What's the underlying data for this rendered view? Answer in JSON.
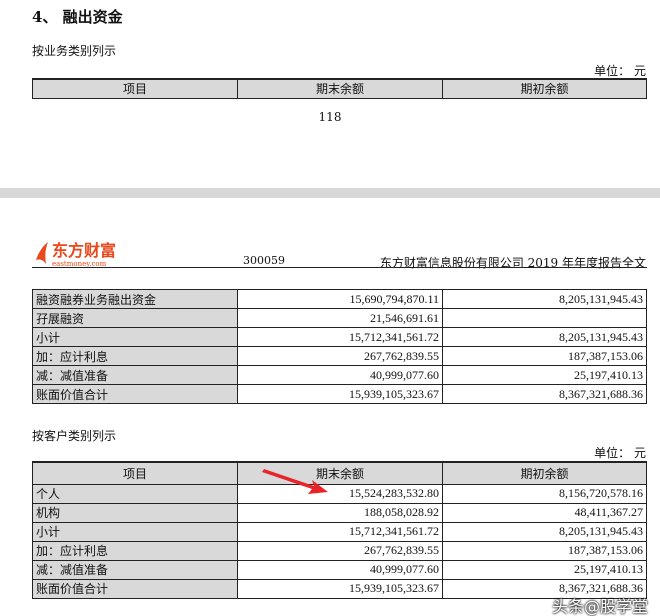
{
  "page1": {
    "heading": "4、 融出资金",
    "subtitle": "按业务类别列示",
    "unit": "单位： 元",
    "headers": [
      "项目",
      "期末余额",
      "期初余额"
    ],
    "page_number": "118"
  },
  "page2": {
    "logo_cn": "东方财富",
    "logo_en": "eastmoney.com",
    "stock_code": "300059",
    "doc_title": "东方财富信息股份有限公司 2019 年年度报告全文",
    "table1": [
      [
        "融资融券业务融出资金",
        "15,690,794,870.11",
        "8,205,131,945.43"
      ],
      [
        "孖展融资",
        "21,546,691.61",
        ""
      ],
      [
        "小计",
        "15,712,341,561.72",
        "8,205,131,945.43"
      ],
      [
        "加：应计利息",
        "267,762,839.55",
        "187,387,153.06"
      ],
      [
        "减：减值准备",
        "40,999,077.60",
        "25,197,410.13"
      ],
      [
        "账面价值合计",
        "15,939,105,323.67",
        "8,367,321,688.36"
      ]
    ],
    "subtitle2": "按客户类别列示",
    "unit": "单位： 元",
    "headers": [
      "项目",
      "期末余额",
      "期初余额"
    ],
    "table2": [
      [
        "个人",
        "15,524,283,532.80",
        "8,156,720,578.16"
      ],
      [
        "机构",
        "188,058,028.92",
        "48,411,367.27"
      ],
      [
        "小计",
        "15,712,341,561.72",
        "8,205,131,945.43"
      ],
      [
        "加：应计利息",
        "267,762,839.55",
        "187,387,153.06"
      ],
      [
        "减：减值准备",
        "40,999,077.60",
        "25,197,410.13"
      ],
      [
        "账面价值合计",
        "15,939,105,323.67",
        "8,367,321,688.36"
      ]
    ]
  },
  "watermark": "头条@股学堂",
  "colors": {
    "logo": "#e8491d",
    "arrow": "#e8232a",
    "header_bg": "#d9d9d9"
  }
}
